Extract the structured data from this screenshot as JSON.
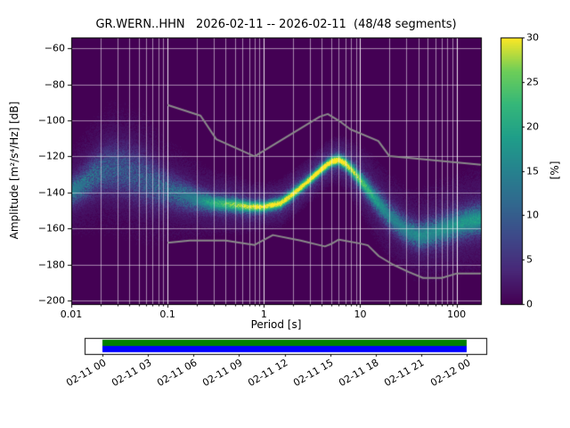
{
  "chart_data": {
    "type": "heatmap",
    "title": "GR.WERN..HHN   2026-02-11 -- 2026-02-11  (48/48 segments)",
    "station_id": "GR.WERN..HHN",
    "date_range": "2026-02-11 -- 2026-02-11",
    "segments_used": "48/48 segments",
    "xlabel": "Period [s]",
    "ylabel": "Amplitude [m²/s⁴/Hz] [dB]",
    "x_scale": "log",
    "xlim": [
      0.01,
      179
    ],
    "ylim": [
      -202,
      -54
    ],
    "x_ticks": [
      0.01,
      0.1,
      1,
      10,
      100
    ],
    "x_tick_labels": [
      "0.01",
      "0.1",
      "1",
      "10",
      "100"
    ],
    "y_ticks": [
      -60,
      -80,
      -100,
      -120,
      -140,
      -160,
      -180,
      -200
    ],
    "y_tick_labels": [
      "−60",
      "−80",
      "−100",
      "−120",
      "−140",
      "−160",
      "−180",
      "−200"
    ],
    "grid": true,
    "background_value_color": "#440154",
    "grid_color": "#ffffff",
    "colorbar": {
      "label": "[%]",
      "min": 0,
      "max": 30,
      "ticks": [
        0,
        5,
        10,
        15,
        20,
        25,
        30
      ],
      "tick_labels": [
        "0",
        "5",
        "10",
        "15",
        "20",
        "25",
        "30"
      ],
      "colormap": "viridis",
      "stops": [
        {
          "t": 0.0,
          "c": "#440154"
        },
        {
          "t": 0.125,
          "c": "#482878"
        },
        {
          "t": 0.25,
          "c": "#3e4989"
        },
        {
          "t": 0.375,
          "c": "#31688e"
        },
        {
          "t": 0.5,
          "c": "#26828e"
        },
        {
          "t": 0.625,
          "c": "#1f9e89"
        },
        {
          "t": 0.75,
          "c": "#35b779"
        },
        {
          "t": 0.875,
          "c": "#6ece58"
        },
        {
          "t": 1.0,
          "c": "#fde725"
        }
      ]
    },
    "psd_mode_ridge": {
      "description": "Approximate mode of the PSD probability density; columns: period_s, amplitude_db, spread_db, peak_probability_percent",
      "columns": [
        "period_s",
        "amplitude_db",
        "spread_db",
        "peak_percent"
      ],
      "points": [
        [
          0.01,
          -140,
          4.5,
          13
        ],
        [
          0.013,
          -136,
          5.5,
          11
        ],
        [
          0.018,
          -130,
          7.0,
          9
        ],
        [
          0.025,
          -127,
          8.5,
          8
        ],
        [
          0.035,
          -128,
          9.0,
          7.5
        ],
        [
          0.05,
          -131,
          9.0,
          7.5
        ],
        [
          0.07,
          -135,
          8.0,
          8
        ],
        [
          0.1,
          -139,
          6.0,
          9
        ],
        [
          0.15,
          -142,
          5.0,
          11
        ],
        [
          0.2,
          -144,
          4.0,
          13
        ],
        [
          0.3,
          -146,
          3.0,
          18
        ],
        [
          0.4,
          -146.5,
          2.7,
          21
        ],
        [
          0.5,
          -147,
          2.5,
          23
        ],
        [
          0.7,
          -148,
          2.2,
          25
        ],
        [
          1.0,
          -148,
          2.0,
          27
        ],
        [
          1.5,
          -146,
          2.0,
          27
        ],
        [
          2.0,
          -141,
          2.0,
          28
        ],
        [
          3.0,
          -133,
          1.9,
          29
        ],
        [
          4.0,
          -127,
          1.9,
          30
        ],
        [
          5.0,
          -123,
          1.9,
          30
        ],
        [
          6.0,
          -122,
          2.0,
          30
        ],
        [
          7.0,
          -124,
          2.2,
          28
        ],
        [
          8.0,
          -127,
          2.4,
          26
        ],
        [
          10.0,
          -133,
          3.0,
          22
        ],
        [
          15.0,
          -145,
          4.0,
          16
        ],
        [
          20.0,
          -153,
          4.5,
          13
        ],
        [
          30.0,
          -161,
          4.5,
          13
        ],
        [
          40.0,
          -164,
          4.5,
          14
        ],
        [
          60.0,
          -162,
          5.0,
          14
        ],
        [
          100.0,
          -158,
          5.0,
          15
        ],
        [
          140.0,
          -156,
          5.0,
          16
        ],
        [
          179.0,
          -155,
          5.0,
          16
        ]
      ]
    },
    "noise_models": {
      "description": "Peterson (1993) global noise model bounds, gray lines",
      "color": "#8a8a8a",
      "high_noise_model": [
        [
          0.1,
          -91.5
        ],
        [
          0.22,
          -97.4
        ],
        [
          0.32,
          -110.5
        ],
        [
          0.8,
          -120.0
        ],
        [
          3.8,
          -98.0
        ],
        [
          4.6,
          -96.5
        ],
        [
          6.3,
          -101.0
        ],
        [
          7.9,
          -105.0
        ],
        [
          15.4,
          -111.5
        ],
        [
          20.0,
          -119.8
        ],
        [
          179.0,
          -124.6
        ]
      ],
      "low_noise_model": [
        [
          0.1,
          -168.0
        ],
        [
          0.17,
          -166.7
        ],
        [
          0.4,
          -166.7
        ],
        [
          0.8,
          -169.2
        ],
        [
          1.24,
          -163.7
        ],
        [
          2.4,
          -166.7
        ],
        [
          4.3,
          -170.0
        ],
        [
          5.0,
          -168.6
        ],
        [
          6.0,
          -166.2
        ],
        [
          10.0,
          -168.4
        ],
        [
          12.0,
          -169.4
        ],
        [
          15.6,
          -175.4
        ],
        [
          21.9,
          -180.1
        ],
        [
          31.6,
          -184.1
        ],
        [
          45.0,
          -187.5
        ],
        [
          70.0,
          -187.5
        ],
        [
          101.0,
          -185.0
        ],
        [
          154.0,
          -185.0
        ],
        [
          179.0,
          -185.0
        ]
      ]
    },
    "availability_bar": {
      "description": "Data coverage bar below the plot, full coverage 02-11 00:00 to 02-12 00:00",
      "tick_labels": [
        "02-11 00",
        "02-11 03",
        "02-11 06",
        "02-11 09",
        "02-11 12",
        "02-11 15",
        "02-11 18",
        "02-11 21",
        "02-12 00"
      ],
      "colors": {
        "top_stripe": "#008000",
        "bottom_stripe": "#0000ff",
        "box": "#ffffff"
      }
    }
  }
}
